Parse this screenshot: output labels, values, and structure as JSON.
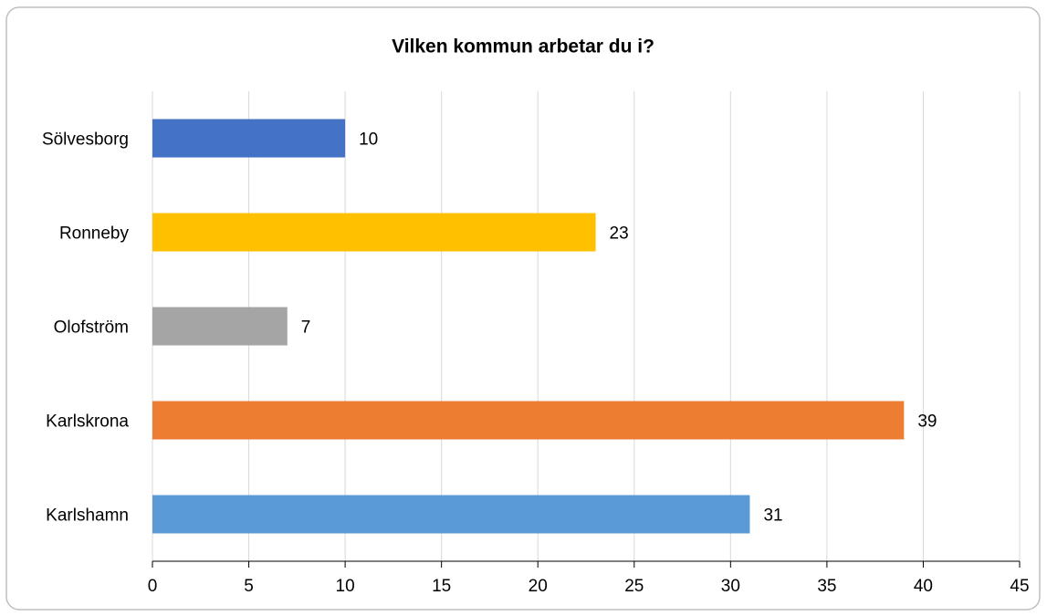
{
  "chart_data": {
    "type": "barh",
    "title": "Vilken kommun arbetar du i?",
    "categories": [
      "Sölvesborg",
      "Ronneby",
      "Olofström",
      "Karlskrona",
      "Karlshamn"
    ],
    "values": [
      10,
      23,
      7,
      39,
      31
    ],
    "colors": [
      "#4472c4",
      "#ffc000",
      "#a5a5a5",
      "#ed7d31",
      "#5b9bd5"
    ],
    "xlim": [
      0,
      45
    ],
    "xticks": [
      0,
      5,
      10,
      15,
      20,
      25,
      30,
      35,
      40,
      45
    ],
    "grid": true
  }
}
